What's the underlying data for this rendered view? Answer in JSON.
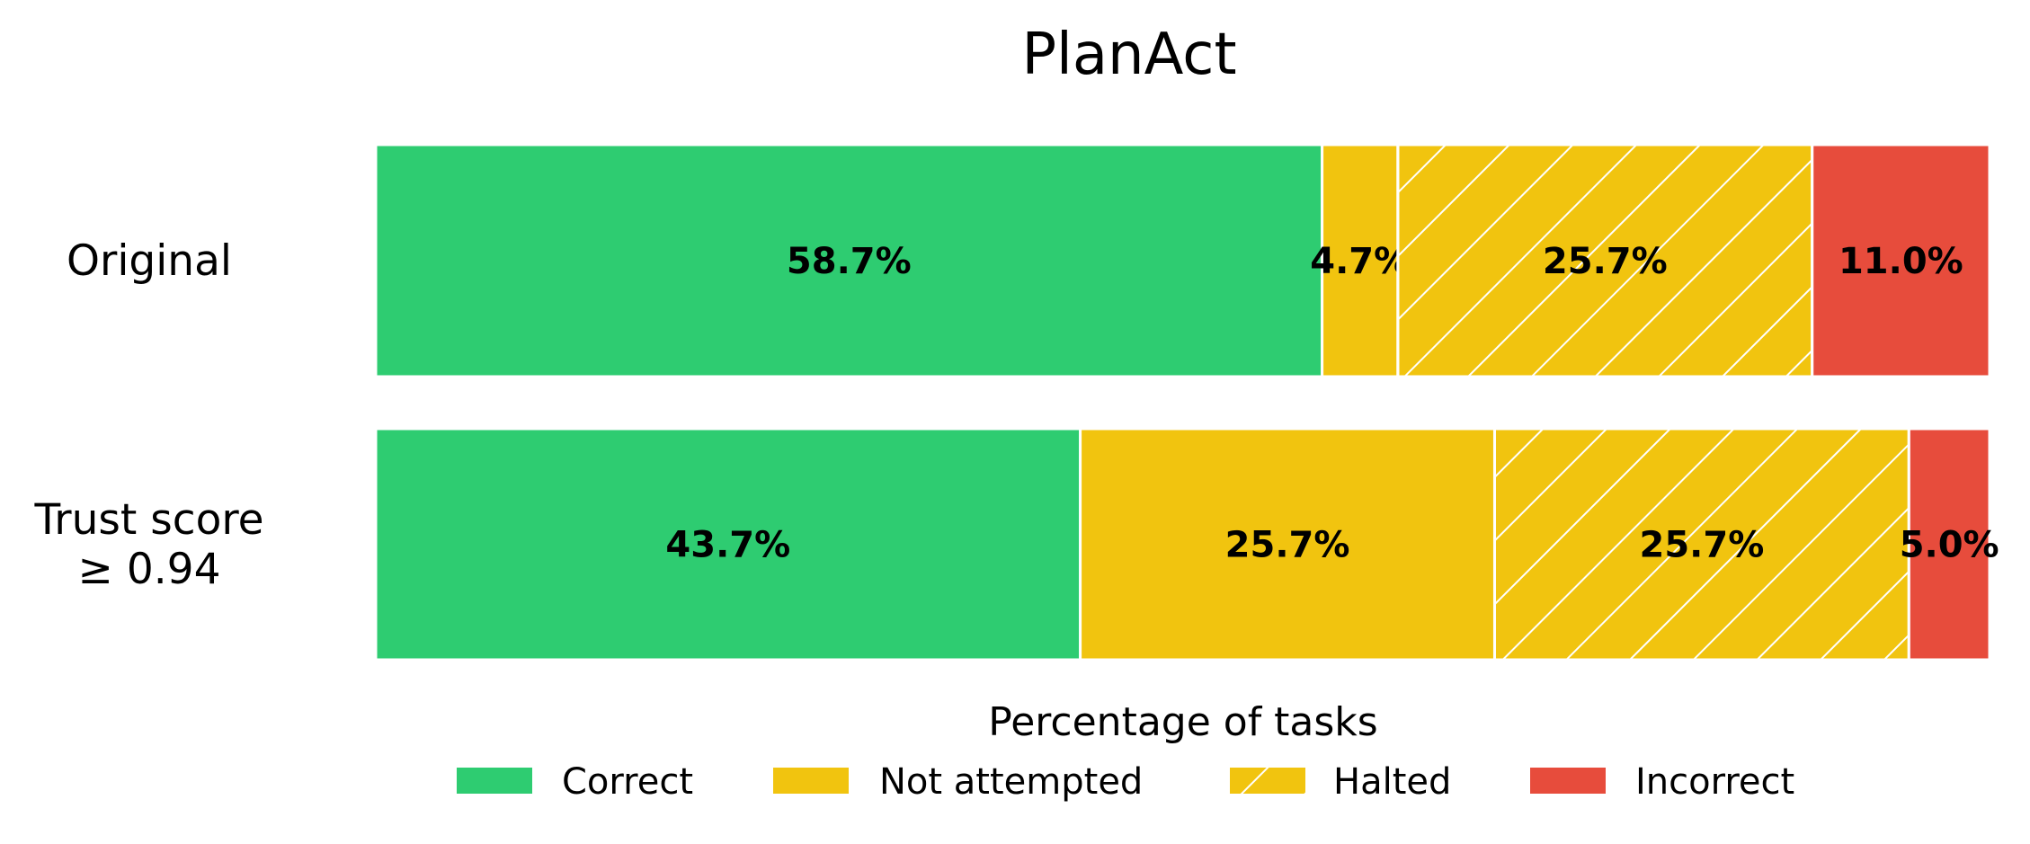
{
  "chart_data": {
    "type": "bar",
    "orientation": "horizontal",
    "stacked": true,
    "title": "PlanAct",
    "xlabel": "Percentage of tasks",
    "ylabel": "",
    "xlim": [
      0,
      100.1
    ],
    "grid": false,
    "legend_placement": "bottom",
    "categories": [
      {
        "lines": [
          "Original"
        ]
      },
      {
        "lines": [
          "Trust score",
          "≥ 0.94"
        ]
      }
    ],
    "series": [
      {
        "name": "Correct",
        "color": "#2ecc71",
        "hatch": false,
        "values": [
          58.7,
          43.7
        ],
        "labels": [
          "58.7%",
          "43.7%"
        ]
      },
      {
        "name": "Not attempted",
        "color": "#f1c40f",
        "hatch": false,
        "values": [
          4.7,
          25.7
        ],
        "labels": [
          "4.7%",
          "25.7%"
        ]
      },
      {
        "name": "Halted",
        "color": "#f1c40f",
        "hatch": true,
        "values": [
          25.7,
          25.7
        ],
        "labels": [
          "25.7%",
          "25.7%"
        ]
      },
      {
        "name": "Incorrect",
        "color": "#e74c3c",
        "hatch": false,
        "values": [
          11.0,
          5.0
        ],
        "labels": [
          "11.0%",
          "5.0%"
        ]
      }
    ]
  }
}
